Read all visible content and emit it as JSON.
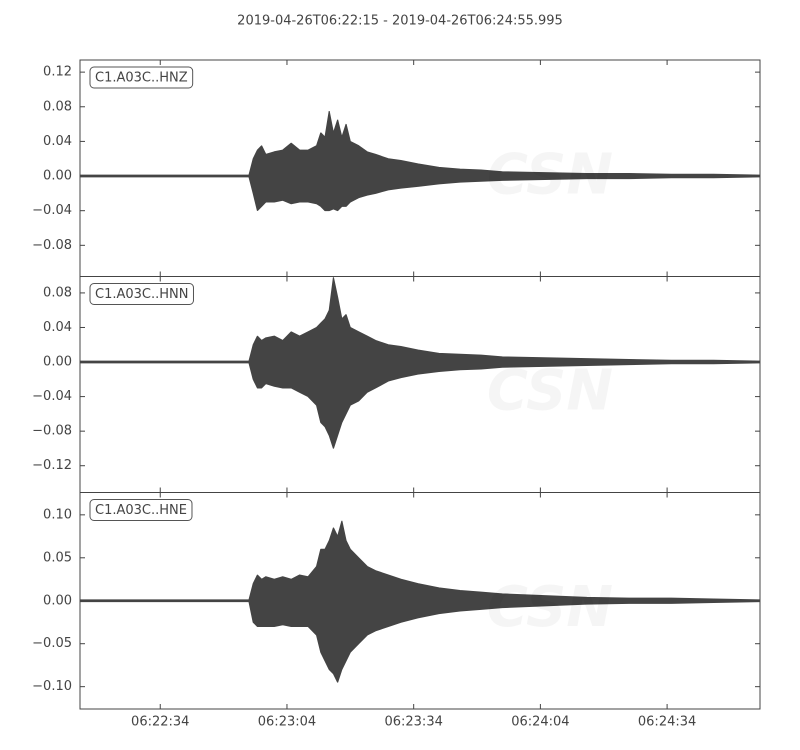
{
  "title": "2019-04-26T06:22:15  -  2019-04-26T06:24:55.995",
  "watermark": "CSN",
  "chart_data": [
    {
      "type": "envelope",
      "label": "C1.A03C..HNZ",
      "color": "#444444",
      "x": [
        0,
        40,
        41,
        42,
        43,
        44,
        46,
        48,
        50,
        52,
        54,
        56,
        57,
        58,
        59,
        60,
        61,
        62,
        63,
        64,
        66,
        68,
        70,
        73,
        76,
        80,
        85,
        90,
        95,
        100,
        110,
        120,
        130,
        140,
        150,
        160.995
      ],
      "upper": [
        0.001,
        0.001,
        0.02,
        0.03,
        0.035,
        0.025,
        0.028,
        0.03,
        0.038,
        0.03,
        0.03,
        0.035,
        0.05,
        0.045,
        0.075,
        0.05,
        0.065,
        0.045,
        0.06,
        0.04,
        0.035,
        0.028,
        0.025,
        0.02,
        0.018,
        0.014,
        0.01,
        0.008,
        0.007,
        0.005,
        0.004,
        0.003,
        0.003,
        0.002,
        0.002,
        0.001
      ],
      "lower": [
        -0.001,
        -0.001,
        -0.02,
        -0.04,
        -0.035,
        -0.03,
        -0.03,
        -0.028,
        -0.032,
        -0.03,
        -0.03,
        -0.032,
        -0.035,
        -0.04,
        -0.04,
        -0.038,
        -0.04,
        -0.035,
        -0.035,
        -0.03,
        -0.025,
        -0.022,
        -0.02,
        -0.016,
        -0.014,
        -0.012,
        -0.009,
        -0.007,
        -0.006,
        -0.005,
        -0.004,
        -0.003,
        -0.003,
        -0.002,
        -0.002,
        -0.001
      ],
      "xlim": [
        0,
        160.995
      ],
      "ylim": [
        -0.116,
        0.134
      ],
      "yticks": [
        {
          "value": 0.12,
          "label": "0.12"
        },
        {
          "value": 0.08,
          "label": "0.08"
        },
        {
          "value": 0.04,
          "label": "0.04"
        },
        {
          "value": 0,
          "label": "0.00"
        },
        {
          "value": -0.04,
          "label": "−0.04"
        },
        {
          "value": -0.08,
          "label": "−0.08"
        }
      ]
    },
    {
      "type": "envelope",
      "label": "C1.A03C..HNN",
      "color": "#444444",
      "x": [
        0,
        40,
        41,
        42,
        43,
        44,
        46,
        48,
        50,
        52,
        54,
        56,
        57,
        58,
        59,
        60,
        61,
        62,
        63,
        64,
        66,
        68,
        70,
        73,
        76,
        80,
        85,
        90,
        95,
        100,
        110,
        120,
        130,
        140,
        150,
        160.995
      ],
      "upper": [
        0.001,
        0.001,
        0.02,
        0.03,
        0.025,
        0.028,
        0.03,
        0.025,
        0.035,
        0.03,
        0.035,
        0.04,
        0.045,
        0.05,
        0.06,
        0.098,
        0.075,
        0.05,
        0.055,
        0.04,
        0.035,
        0.03,
        0.025,
        0.02,
        0.018,
        0.014,
        0.01,
        0.009,
        0.008,
        0.006,
        0.005,
        0.004,
        0.003,
        0.002,
        0.002,
        0.001
      ],
      "lower": [
        -0.001,
        -0.001,
        -0.02,
        -0.03,
        -0.03,
        -0.025,
        -0.028,
        -0.03,
        -0.03,
        -0.035,
        -0.04,
        -0.05,
        -0.07,
        -0.075,
        -0.085,
        -0.1,
        -0.085,
        -0.07,
        -0.06,
        -0.05,
        -0.045,
        -0.035,
        -0.03,
        -0.022,
        -0.018,
        -0.014,
        -0.011,
        -0.009,
        -0.008,
        -0.006,
        -0.005,
        -0.004,
        -0.003,
        -0.002,
        -0.002,
        -0.001
      ],
      "xlim": [
        0,
        160.995
      ],
      "ylim": [
        -0.151,
        0.099
      ],
      "yticks": [
        {
          "value": 0.08,
          "label": "0.08"
        },
        {
          "value": 0.04,
          "label": "0.04"
        },
        {
          "value": 0,
          "label": "0.00"
        },
        {
          "value": -0.04,
          "label": "−0.04"
        },
        {
          "value": -0.08,
          "label": "−0.08"
        },
        {
          "value": -0.12,
          "label": "−0.12"
        }
      ]
    },
    {
      "type": "envelope",
      "label": "C1.A03C..HNE",
      "color": "#444444",
      "x": [
        0,
        40,
        41,
        42,
        43,
        44,
        46,
        48,
        50,
        52,
        54,
        56,
        57,
        58,
        59,
        60,
        61,
        62,
        63,
        64,
        66,
        68,
        70,
        73,
        76,
        80,
        85,
        90,
        95,
        100,
        110,
        120,
        130,
        140,
        150,
        160.995
      ],
      "upper": [
        0.001,
        0.001,
        0.02,
        0.03,
        0.025,
        0.028,
        0.025,
        0.028,
        0.025,
        0.03,
        0.028,
        0.04,
        0.06,
        0.06,
        0.07,
        0.085,
        0.075,
        0.093,
        0.07,
        0.06,
        0.05,
        0.04,
        0.035,
        0.03,
        0.025,
        0.02,
        0.015,
        0.012,
        0.01,
        0.008,
        0.006,
        0.004,
        0.003,
        0.003,
        0.002,
        0.001
      ],
      "lower": [
        -0.001,
        -0.001,
        -0.025,
        -0.03,
        -0.03,
        -0.03,
        -0.03,
        -0.028,
        -0.03,
        -0.03,
        -0.03,
        -0.04,
        -0.06,
        -0.07,
        -0.08,
        -0.085,
        -0.095,
        -0.08,
        -0.07,
        -0.06,
        -0.05,
        -0.04,
        -0.035,
        -0.03,
        -0.025,
        -0.02,
        -0.015,
        -0.012,
        -0.01,
        -0.008,
        -0.006,
        -0.004,
        -0.003,
        -0.003,
        -0.002,
        -0.001
      ],
      "xlim": [
        0,
        160.995
      ],
      "ylim": [
        -0.126,
        0.126
      ],
      "yticks": [
        {
          "value": 0.1,
          "label": "0.10"
        },
        {
          "value": 0.05,
          "label": "0.05"
        },
        {
          "value": 0,
          "label": "0.00"
        },
        {
          "value": -0.05,
          "label": "−0.05"
        },
        {
          "value": -0.1,
          "label": "−0.10"
        }
      ],
      "xticks": [
        {
          "value": 19,
          "label": "06:22:34"
        },
        {
          "value": 49,
          "label": "06:23:04"
        },
        {
          "value": 79,
          "label": "06:23:34"
        },
        {
          "value": 109,
          "label": "06:24:04"
        },
        {
          "value": 139,
          "label": "06:24:34"
        }
      ]
    }
  ]
}
